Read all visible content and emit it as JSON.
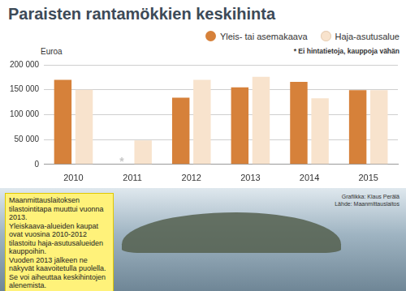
{
  "chart_data": {
    "type": "bar",
    "title": "Paraisten rantamökkien keskihinta",
    "ylabel": "Euroa",
    "note": "* Ei hintatietoja, kauppoja vähän",
    "categories": [
      "2010",
      "2011",
      "2012",
      "2013",
      "2014",
      "2015"
    ],
    "series": [
      {
        "name": "Yleis- tai asemakaava",
        "color": "#d6813a",
        "values": [
          170000,
          null,
          134000,
          155000,
          166000,
          149000
        ]
      },
      {
        "name": "Haja-asutusalue",
        "color": "#f8e3cd",
        "values": [
          150000,
          48000,
          170000,
          176000,
          133000,
          149000
        ]
      }
    ],
    "annotations": [
      {
        "text": "*",
        "category": "2011",
        "series": "Yleis- tai asemakaava"
      }
    ],
    "ylim": [
      0,
      200000
    ],
    "yticks": [
      0,
      {
        "value": 50000,
        "label": "50 000"
      },
      {
        "value": 100000,
        "label": "100 000"
      },
      {
        "value": 150000,
        "label": "150 000"
      },
      {
        "value": 200000,
        "label": "200 000"
      }
    ],
    "grid": true,
    "legend": "top-right",
    "callout": [
      "Maanmittauslaitoksen tilastointitapa muuttui vuonna 2013.",
      "Yleiskaava-alueiden kaupat ovat vuosina 2010-2012 tilastoitu haja-asutusalueiden kauppoihin.",
      "Vuoden 2013 jälkeen ne näkyvät kaavoitetulla puolella. Se voi aiheuttaa keskihintojen alenemista."
    ],
    "credits": [
      "Grafiikka: Klaus Perälä",
      "Lähde: Maanmittauslaitos"
    ]
  }
}
